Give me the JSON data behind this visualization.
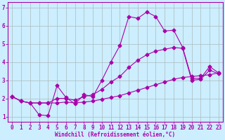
{
  "bg_color": "#cceeff",
  "line_color": "#aa00aa",
  "grid_color": "#aabbbb",
  "xlabel": "Windchill (Refroidissement éolien,°C)",
  "xlim": [
    -0.5,
    23.5
  ],
  "ylim": [
    0.7,
    7.3
  ],
  "yticks": [
    1,
    2,
    3,
    4,
    5,
    6,
    7
  ],
  "xticks": [
    0,
    1,
    2,
    3,
    4,
    5,
    6,
    7,
    8,
    9,
    10,
    11,
    12,
    13,
    14,
    15,
    16,
    17,
    18,
    19,
    20,
    21,
    22,
    23
  ],
  "line1_x": [
    0,
    1,
    2,
    3,
    4,
    5,
    6,
    7,
    8,
    9,
    10,
    11,
    12,
    13,
    14,
    15,
    16,
    17,
    18,
    19,
    20,
    21,
    22,
    23
  ],
  "line1_y": [
    2.1,
    1.85,
    1.75,
    1.75,
    1.75,
    1.75,
    1.8,
    1.75,
    1.8,
    1.85,
    1.95,
    2.05,
    2.15,
    2.3,
    2.45,
    2.6,
    2.75,
    2.9,
    3.05,
    3.15,
    3.2,
    3.25,
    3.3,
    3.4
  ],
  "line2_x": [
    0,
    1,
    2,
    3,
    4,
    5,
    6,
    7,
    8,
    9,
    10,
    11,
    12,
    13,
    14,
    15,
    16,
    17,
    18,
    19,
    20,
    21,
    22,
    23
  ],
  "line2_y": [
    2.1,
    1.85,
    1.75,
    1.1,
    1.05,
    2.7,
    2.05,
    1.7,
    2.2,
    2.1,
    3.0,
    4.0,
    4.9,
    6.5,
    6.4,
    6.75,
    6.5,
    5.7,
    5.75,
    4.8,
    3.1,
    3.1,
    3.75,
    3.4
  ],
  "line3_x": [
    0,
    1,
    2,
    3,
    4,
    5,
    6,
    7,
    8,
    9,
    10,
    11,
    12,
    13,
    14,
    15,
    16,
    17,
    18,
    19,
    20,
    21,
    22,
    23
  ],
  "line3_y": [
    2.1,
    1.85,
    1.75,
    1.75,
    1.75,
    2.0,
    2.0,
    1.9,
    2.1,
    2.2,
    2.5,
    2.9,
    3.2,
    3.7,
    4.1,
    4.4,
    4.6,
    4.7,
    4.8,
    4.75,
    3.0,
    3.05,
    3.55,
    3.35
  ],
  "tick_fontsize": 5.5,
  "xlabel_fontsize": 5.5,
  "marker_size": 2.5,
  "line_width": 0.8
}
